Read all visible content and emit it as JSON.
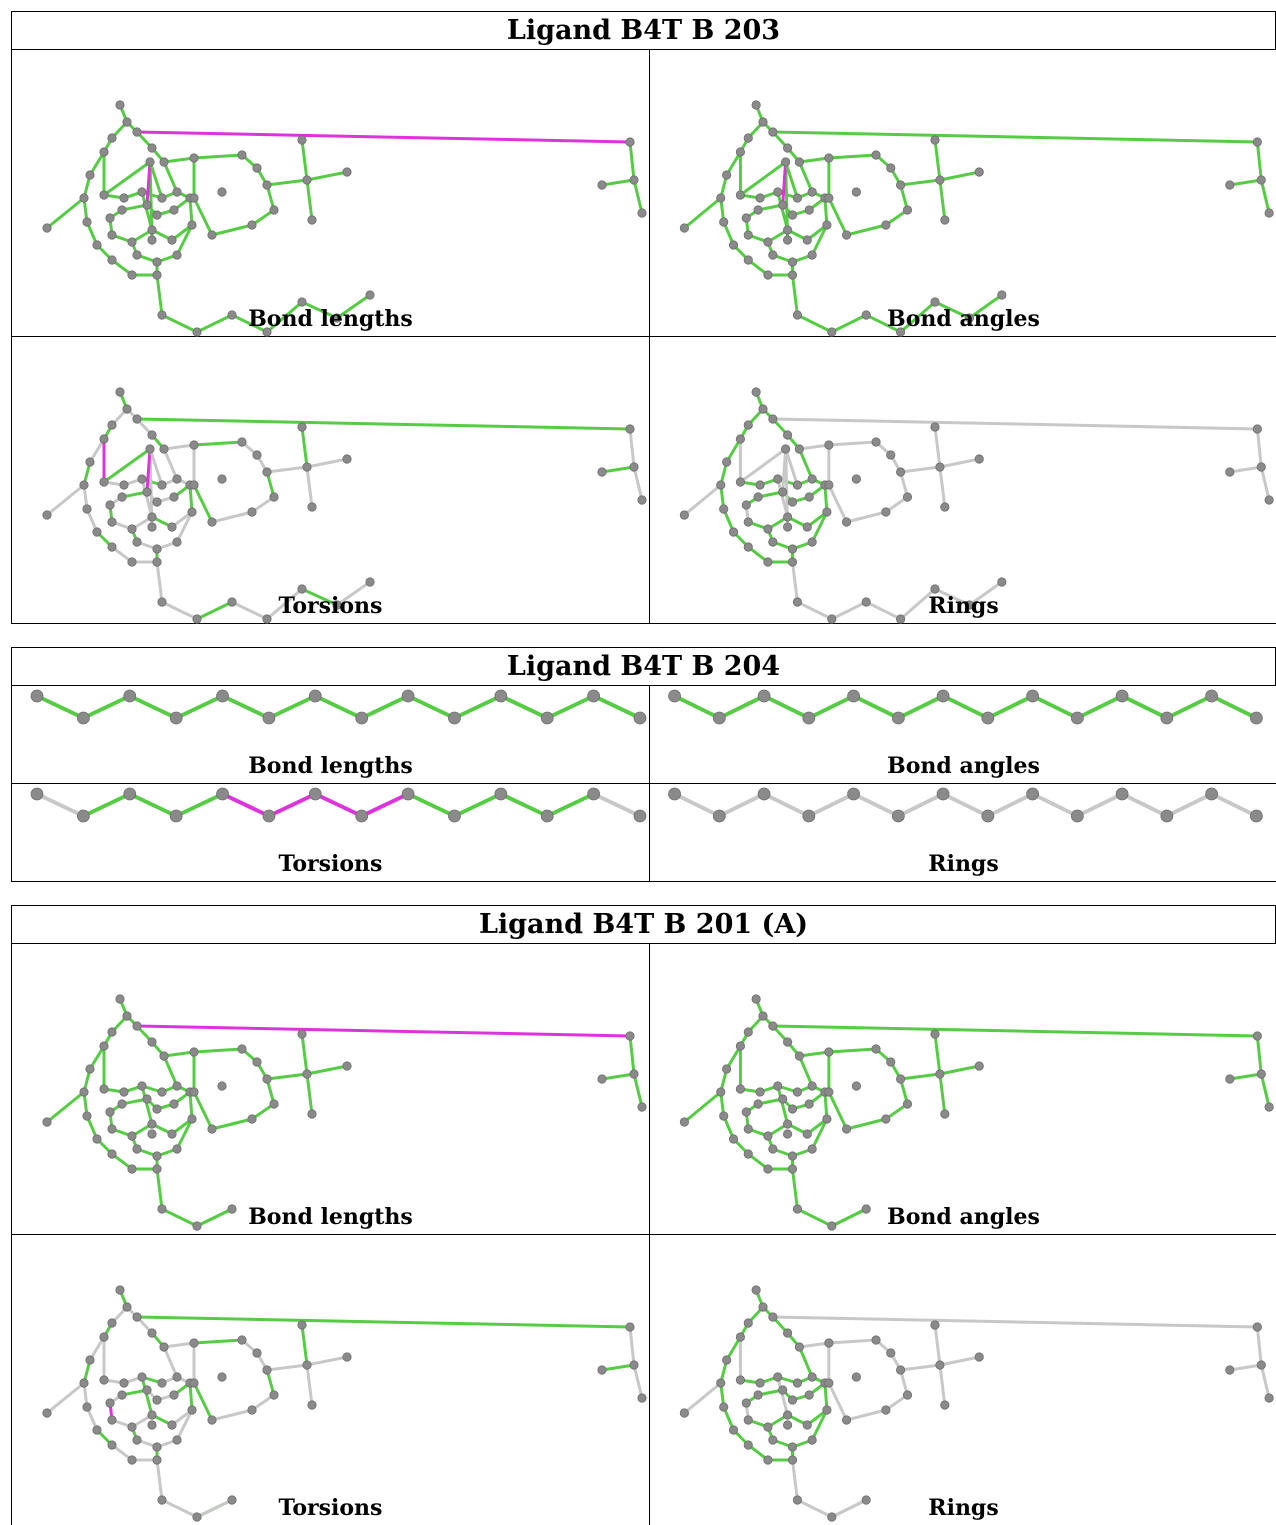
{
  "blocks": [
    {
      "title": "Ligand B4T B 203",
      "molecule": "complex-long",
      "panels": [
        {
          "label": "Bond lengths",
          "scheme": "bond_lengths"
        },
        {
          "label": "Bond angles",
          "scheme": "bond_angles"
        },
        {
          "label": "Torsions",
          "scheme": "torsions"
        },
        {
          "label": "Rings",
          "scheme": "rings"
        }
      ]
    },
    {
      "title": "Ligand B4T B 204",
      "molecule": "chain",
      "panels": [
        {
          "label": "Bond lengths",
          "scheme": "bond_lengths"
        },
        {
          "label": "Bond angles",
          "scheme": "bond_angles"
        },
        {
          "label": "Torsions",
          "scheme": "torsions"
        },
        {
          "label": "Rings",
          "scheme": "rings"
        }
      ]
    },
    {
      "title": "Ligand B4T B 201 (A)",
      "molecule": "complex-short",
      "panels": [
        {
          "label": "Bond lengths",
          "scheme": "bond_lengths"
        },
        {
          "label": "Bond angles",
          "scheme": "bond_angles"
        },
        {
          "label": "Torsions",
          "scheme": "torsions"
        },
        {
          "label": "Rings",
          "scheme": "rings"
        }
      ]
    }
  ],
  "colors": {
    "ok_bond": "#55cc44",
    "outlier_bond": "#dd33dd",
    "neutral_bond": "#c8c8c8",
    "atom": "#8a8a8a",
    "atom_highlight": "#bdbdbd",
    "border": "#000000"
  }
}
